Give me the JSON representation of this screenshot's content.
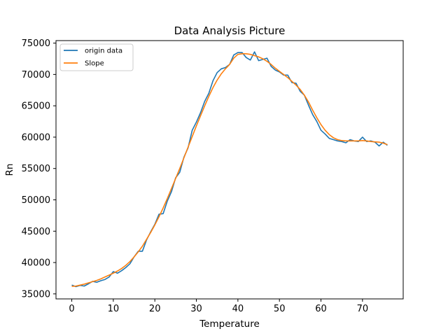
{
  "chart_data": {
    "type": "line",
    "title": "Data Analysis Picture",
    "xlabel": "Temperature",
    "ylabel": "Rn",
    "xlim": [
      -3.8,
      79.8
    ],
    "ylim": [
      34200,
      75400
    ],
    "xticks": [
      0,
      10,
      20,
      30,
      40,
      50,
      60,
      70
    ],
    "yticks": [
      35000,
      40000,
      45000,
      50000,
      55000,
      60000,
      65000,
      70000,
      75000
    ],
    "legend_position": "upper-left",
    "grid": false,
    "series": [
      {
        "name": "origin data",
        "color": "#1f77b4",
        "x": [
          0,
          1,
          2,
          3,
          4,
          5,
          6,
          7,
          8,
          9,
          10,
          11,
          12,
          13,
          14,
          15,
          16,
          17,
          18,
          19,
          20,
          21,
          22,
          23,
          24,
          25,
          26,
          27,
          28,
          29,
          30,
          31,
          32,
          33,
          34,
          35,
          36,
          37,
          38,
          39,
          40,
          41,
          42,
          43,
          44,
          45,
          46,
          47,
          48,
          49,
          50,
          51,
          52,
          53,
          54,
          55,
          56,
          57,
          58,
          59,
          60,
          61,
          62,
          63,
          64,
          65,
          66,
          67,
          68,
          69,
          70,
          71,
          72,
          73,
          74,
          75,
          76
        ],
        "values": [
          36400,
          36150,
          36350,
          36250,
          36600,
          37000,
          36850,
          37100,
          37300,
          37700,
          38550,
          38300,
          38700,
          39200,
          39800,
          40900,
          41800,
          41800,
          43600,
          44900,
          46100,
          47700,
          47800,
          49800,
          51300,
          53500,
          54400,
          56800,
          58300,
          61100,
          62400,
          63900,
          65700,
          67000,
          69000,
          70300,
          70900,
          71100,
          71600,
          73100,
          73500,
          73500,
          72700,
          72300,
          73600,
          72200,
          72400,
          72600,
          71300,
          70700,
          70400,
          69900,
          69900,
          68700,
          68600,
          67300,
          66700,
          65100,
          63600,
          62500,
          61100,
          60500,
          59800,
          59600,
          59400,
          59300,
          59100,
          59600,
          59400,
          59300,
          60000,
          59300,
          59400,
          59200,
          58600,
          59200,
          58700
        ]
      },
      {
        "name": "Slope",
        "color": "#ff7f0e",
        "x": [
          0,
          1,
          2,
          3,
          4,
          5,
          6,
          7,
          8,
          9,
          10,
          11,
          12,
          13,
          14,
          15,
          16,
          17,
          18,
          19,
          20,
          21,
          22,
          23,
          24,
          25,
          26,
          27,
          28,
          29,
          30,
          31,
          32,
          33,
          34,
          35,
          36,
          37,
          38,
          39,
          40,
          41,
          42,
          43,
          44,
          45,
          46,
          47,
          48,
          49,
          50,
          51,
          52,
          53,
          54,
          55,
          56,
          57,
          58,
          59,
          60,
          61,
          62,
          63,
          64,
          65,
          66,
          67,
          68,
          69,
          70,
          71,
          72,
          73,
          74,
          75,
          76
        ],
        "values": [
          36200,
          36250,
          36400,
          36550,
          36750,
          36950,
          37150,
          37400,
          37700,
          38000,
          38300,
          38650,
          39050,
          39550,
          40150,
          40900,
          41700,
          42600,
          43700,
          44800,
          46000,
          47300,
          48700,
          50200,
          51800,
          53400,
          55000,
          56700,
          58400,
          60100,
          61800,
          63400,
          65000,
          66500,
          67900,
          69100,
          70100,
          70900,
          71600,
          72600,
          73200,
          73300,
          73300,
          73200,
          73000,
          72800,
          72500,
          72100,
          71600,
          71000,
          70500,
          70000,
          69500,
          68900,
          68300,
          67600,
          66700,
          65600,
          64300,
          63100,
          62000,
          61100,
          60400,
          59900,
          59600,
          59450,
          59400,
          59400,
          59400,
          59400,
          59450,
          59400,
          59300,
          59250,
          59200,
          59050,
          58800
        ]
      }
    ]
  }
}
